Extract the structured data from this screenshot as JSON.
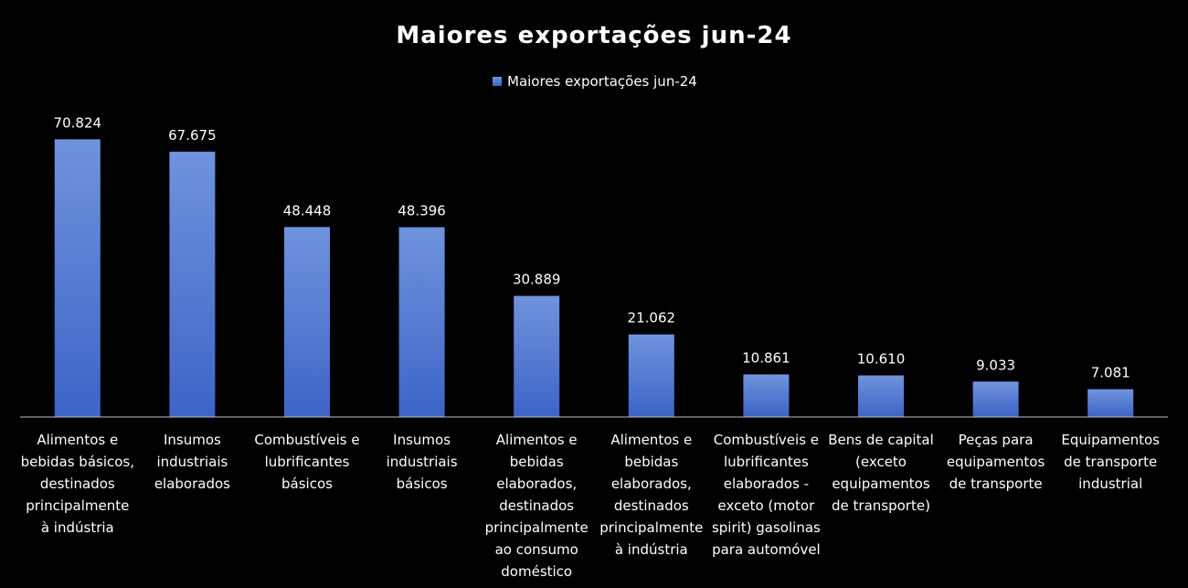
{
  "chart_data": {
    "type": "bar",
    "title": "Maiores exportações jun-24",
    "legend_position": "top-center",
    "grid": false,
    "ylim": [
      0,
      80
    ],
    "categories": [
      [
        "Alimentos e",
        "bebidas básicos,",
        "destinados",
        "principalmente",
        "à indústria"
      ],
      [
        "Insumos",
        "industriais",
        "elaborados"
      ],
      [
        "Combustíveis e",
        "lubrificantes",
        "básicos"
      ],
      [
        "Insumos",
        "industriais",
        "básicos"
      ],
      [
        "Alimentos e",
        "bebidas",
        "elaborados,",
        "destinados",
        "principalmente",
        "ao consumo",
        "doméstico"
      ],
      [
        "Alimentos e",
        "bebidas",
        "elaborados,",
        "destinados",
        "principalmente",
        "à indústria"
      ],
      [
        "Combustíveis e",
        "lubrificantes",
        "elaborados -",
        "exceto (motor",
        "spirit) gasolinas",
        "para automóvel"
      ],
      [
        "Bens de capital",
        "(exceto",
        "equipamentos",
        "de transporte)"
      ],
      [
        "Peças para",
        "equipamentos",
        "de transporte"
      ],
      [
        "Equipamentos",
        "de transporte",
        "industrial"
      ]
    ],
    "series": [
      {
        "name": "Maiores exportações jun-24",
        "values": [
          70.824,
          67.675,
          48.448,
          48.396,
          30.889,
          21.062,
          10.861,
          10.61,
          9.033,
          7.081
        ],
        "labels": [
          "70.824",
          "67.675",
          "48.448",
          "48.396",
          "30.889",
          "21.062",
          "10.861",
          "10.610",
          "9.033",
          "7.081"
        ]
      }
    ],
    "colors": {
      "bar_top": "#6f93dd",
      "bar_bottom": "#3d64c7",
      "axis": "#bfbfbf",
      "text": "#ffffff",
      "background": "#000000"
    }
  }
}
